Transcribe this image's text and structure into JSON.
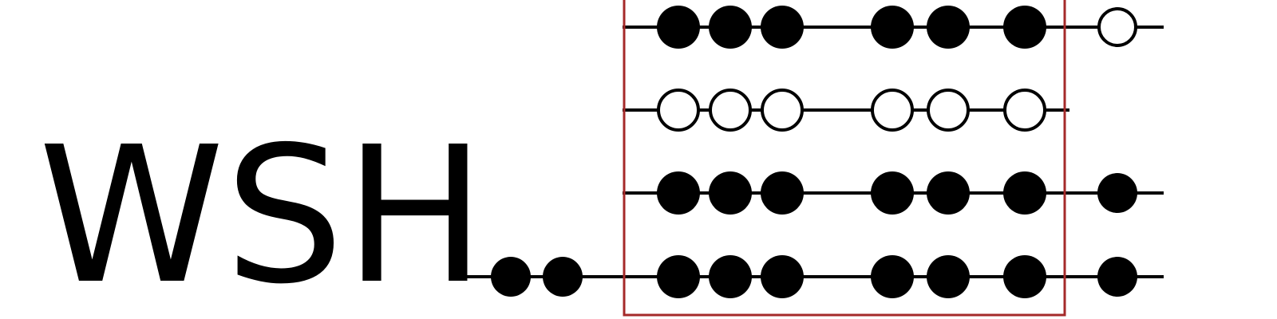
{
  "label": "WSH",
  "colors": {
    "ink": "#000000",
    "paper": "#ffffff",
    "box": "#a52a2a"
  },
  "legend": {
    "filled": "filled-site",
    "empty": "empty-site"
  },
  "rows": [
    {
      "name": "row-1",
      "inside": [
        "filled",
        "filled",
        "filled",
        "filled",
        "filled",
        "filled"
      ],
      "left_outside": [],
      "right_outside": [
        "empty"
      ]
    },
    {
      "name": "row-2",
      "inside": [
        "empty",
        "empty",
        "empty",
        "empty",
        "empty",
        "empty"
      ],
      "left_outside": [],
      "right_outside": []
    },
    {
      "name": "row-3",
      "inside": [
        "filled",
        "filled",
        "filled",
        "filled",
        "filled",
        "filled"
      ],
      "left_outside": [],
      "right_outside": [
        "filled"
      ]
    },
    {
      "name": "row-4",
      "inside": [
        "filled",
        "filled",
        "filled",
        "filled",
        "filled",
        "filled"
      ],
      "left_outside": [
        "filled",
        "filled"
      ],
      "right_outside": [
        "filled"
      ]
    }
  ]
}
